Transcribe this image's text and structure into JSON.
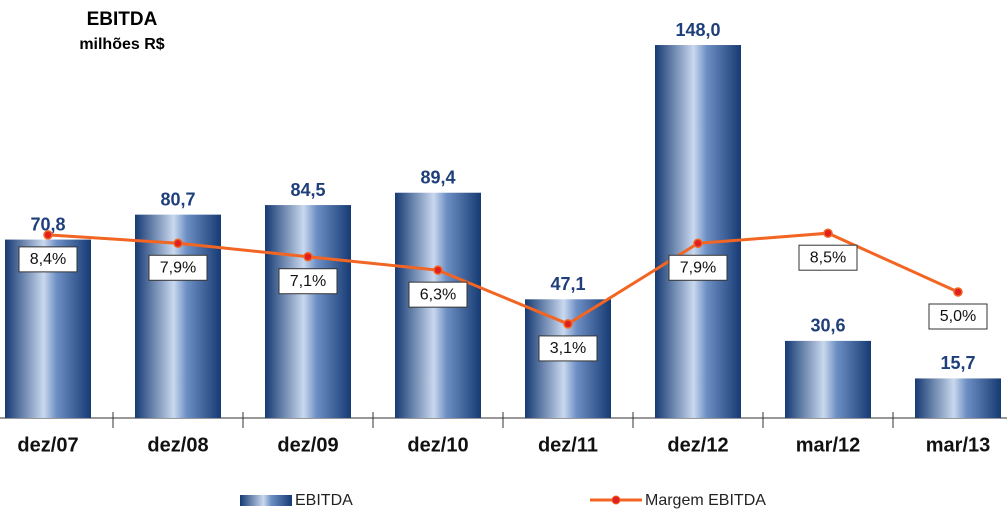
{
  "chart_data": {
    "type": "bar",
    "title": "EBITDA",
    "subtitle": "milhões R$",
    "categories": [
      "dez/07",
      "dez/08",
      "dez/09",
      "dez/10",
      "dez/11",
      "dez/12",
      "mar/12",
      "mar/13"
    ],
    "series": [
      {
        "name": "EBITDA",
        "type": "bar",
        "color": "#1f4e8c",
        "values": [
          70.8,
          80.7,
          84.5,
          89.4,
          47.1,
          148.0,
          30.6,
          15.7
        ],
        "value_labels": [
          "70,8",
          "80,7",
          "84,5",
          "89,4",
          "47,1",
          "148,0",
          "30,6",
          "15,7"
        ]
      },
      {
        "name": "Margem EBITDA",
        "type": "line",
        "axis": "y2",
        "color": "#f26522",
        "values": [
          8.4,
          7.9,
          7.1,
          6.3,
          3.1,
          7.9,
          8.5,
          5.0
        ],
        "value_labels": [
          "8,4%",
          "7,9%",
          "7,1%",
          "6,3%",
          "3,1%",
          "7,9%",
          "8,5%",
          "5,0%"
        ]
      }
    ],
    "ylim": [
      0,
      150
    ],
    "y2lim": [
      -2.5,
      20
    ],
    "grid": false
  }
}
